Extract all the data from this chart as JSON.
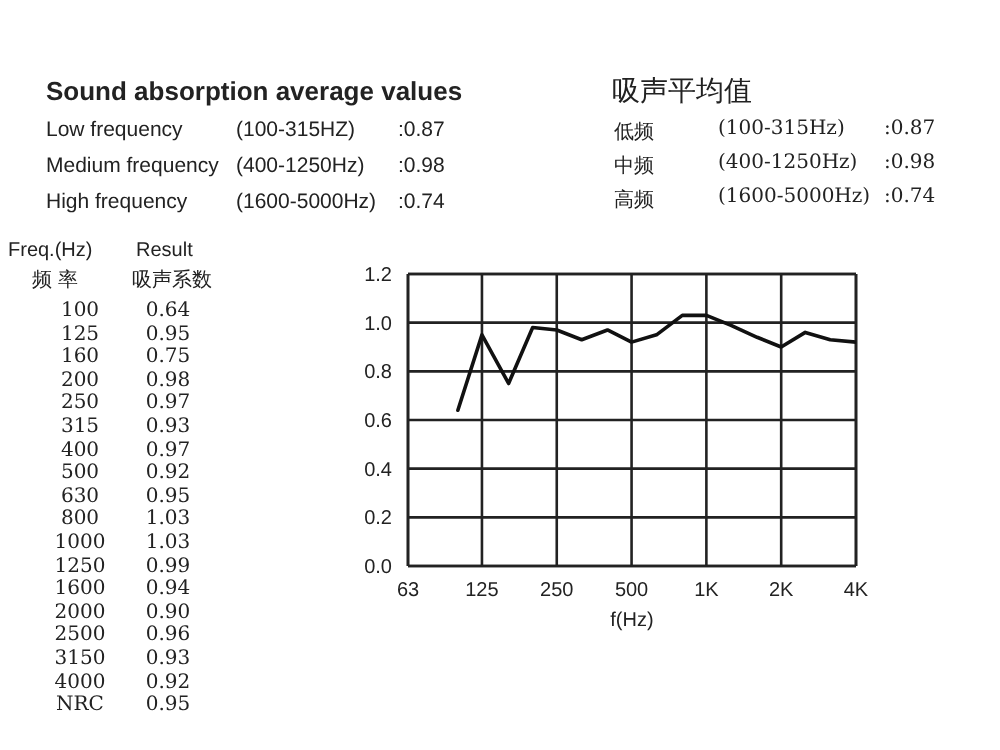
{
  "chart_data": {
    "type": "line",
    "title": "Sound absorption average values",
    "subtitle": "吸声平均值",
    "xlabel": "f(Hz)",
    "x": [
      100,
      125,
      160,
      200,
      250,
      315,
      400,
      500,
      630,
      800,
      1000,
      1250,
      1600,
      2000,
      2500,
      3150,
      4000
    ],
    "series": [
      {
        "color": "#111111",
        "values": [
          0.64,
          0.95,
          0.75,
          0.98,
          0.97,
          0.93,
          0.97,
          0.92,
          0.95,
          1.03,
          1.03,
          0.99,
          0.94,
          0.9,
          0.96,
          0.93,
          0.92
        ]
      }
    ],
    "xlim": [
      63,
      4000
    ],
    "xticks": [
      63,
      125,
      250,
      500,
      {
        "value": 1000,
        "label": "1K"
      },
      {
        "value": 2000,
        "label": "2K"
      },
      {
        "value": 4000,
        "label": "4K"
      }
    ],
    "ylim": [
      0,
      1.2
    ],
    "yticks": [
      {
        "value": 0,
        "label": "0.0"
      },
      0.2,
      0.4,
      0.6,
      0.8,
      {
        "value": 1,
        "label": "1.0"
      },
      1.2
    ],
    "log": "x",
    "grid": true,
    "marker": "none",
    "line_style": "solid",
    "annotations": [
      "Low frequency",
      "(100-315HZ)",
      ":0.87",
      "Medium frequency",
      "(400-1250Hz)",
      ":0.98",
      "High frequency",
      "(1600-5000Hz)",
      ":0.74",
      "低频",
      "(100-315Hz)",
      ":0.87",
      "中频",
      "(400-1250Hz)",
      ":0.98",
      "高频",
      "(1600-5000Hz)",
      ":0.74",
      "Freq.(Hz)",
      "频 率",
      "Result",
      "吸声系数",
      "100",
      "0.64",
      "125",
      "0.95",
      "160",
      "0.75",
      "200",
      "0.98",
      "250",
      "0.97",
      "315",
      "0.93",
      "400",
      "0.97",
      "500",
      "0.92",
      "630",
      "0.95",
      "800",
      "1.03",
      "1000",
      "1.03",
      "1250",
      "0.99",
      "1600",
      "0.94",
      "2000",
      "0.90",
      "2500",
      "0.96",
      "3150",
      "0.93",
      "4000",
      "0.92",
      "NRC",
      "0.95"
    ]
  }
}
